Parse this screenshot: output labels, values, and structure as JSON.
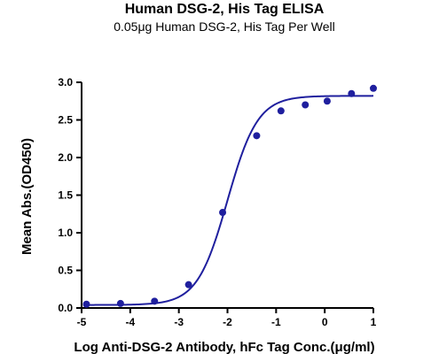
{
  "chart_data": {
    "type": "scatter",
    "title": "Human DSG-2, His Tag ELISA",
    "subtitle": "0.05μg Human DSG-2, His Tag Per Well",
    "xlabel": "Log Anti-DSG-2 Antibody, hFc Tag Conc.(μg/ml)",
    "ylabel": "Mean Abs.(OD450)",
    "xlim": [
      -5,
      1
    ],
    "ylim": [
      0,
      3.0
    ],
    "x_ticks": [
      -5,
      -4,
      -3,
      -2,
      -1,
      0,
      1
    ],
    "x_tick_labels": [
      "-5",
      "-4",
      "-3",
      "-2",
      "-1",
      "0",
      "1"
    ],
    "y_ticks": [
      0,
      0.5,
      1.0,
      1.5,
      2.0,
      2.5,
      3.0
    ],
    "y_tick_labels": [
      "0.0",
      "0.5",
      "1.0",
      "1.5",
      "2.0",
      "2.5",
      "3.0"
    ],
    "grid": false,
    "legend": "none",
    "color": "#1f1f9e",
    "series": [
      {
        "x": [
          -4.9,
          -4.2,
          -3.5,
          -2.8,
          -2.1,
          -1.4,
          -0.9,
          -0.4,
          0.05,
          0.55,
          1.0
        ],
        "y": [
          0.05,
          0.06,
          0.09,
          0.31,
          1.27,
          2.29,
          2.62,
          2.7,
          2.75,
          2.85,
          2.92
        ]
      }
    ],
    "fit": {
      "model": "4PL",
      "bottom": 0.04,
      "top": 2.82,
      "logEC50": -2.0,
      "hill": 1.4
    }
  }
}
